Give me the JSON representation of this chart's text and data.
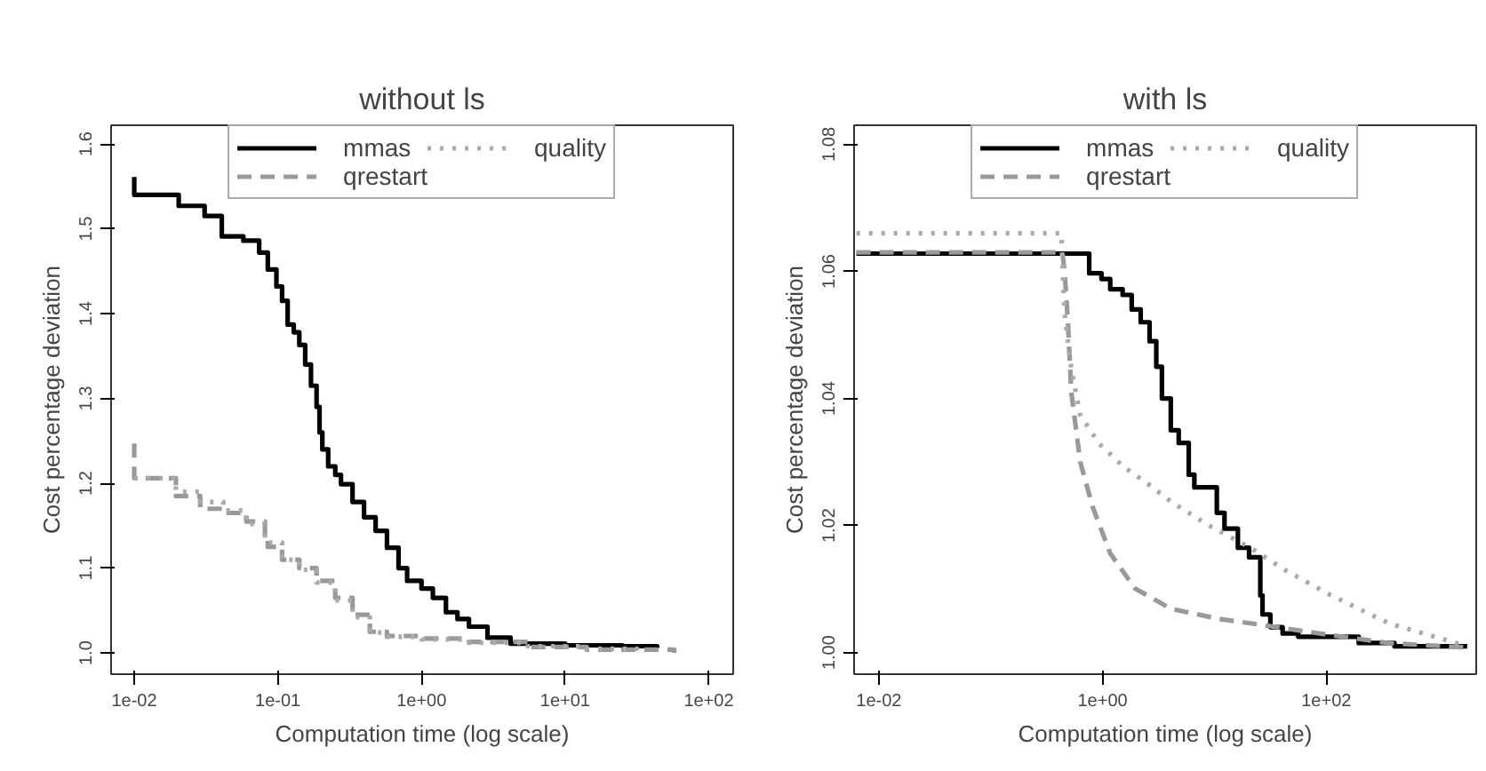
{
  "chart_data": [
    {
      "type": "step",
      "title": "without ls",
      "xlabel": "Computation time (log scale)",
      "ylabel": "Cost percentage deviation",
      "log": "x",
      "grid": false,
      "legend": "top",
      "xlim": [
        0.0069,
        148
      ],
      "ylim": [
        0.975,
        1.622
      ],
      "xticks": [
        {
          "value": 0.01,
          "label": "1e-02"
        },
        {
          "value": 0.1,
          "label": "1e-01"
        },
        {
          "value": 1,
          "label": "1e+00"
        },
        {
          "value": 10,
          "label": "1e+01"
        },
        {
          "value": 100,
          "label": "1e+02"
        }
      ],
      "yticks": [
        {
          "value": 1.0,
          "label": "1.0"
        },
        1.1,
        1.2,
        1.3,
        1.4,
        1.5,
        1.6
      ],
      "series": [
        {
          "name": "mmas",
          "color": "#000000",
          "line_style": "solid",
          "x": [
            0.01,
            0.01,
            0.0204,
            0.0309,
            0.0407,
            0.0575,
            0.0741,
            0.0851,
            0.0977,
            0.107,
            0.117,
            0.129,
            0.141,
            0.155,
            0.17,
            0.186,
            0.195,
            0.204,
            0.224,
            0.251,
            0.275,
            0.331,
            0.398,
            0.479,
            0.575,
            0.692,
            0.794,
            1,
            1.2,
            1.48,
            1.78,
            2.14,
            2.88,
            4.17,
            10,
            25.1,
            43.7
          ],
          "values": [
            1.561,
            1.54,
            1.527,
            1.515,
            1.491,
            1.486,
            1.472,
            1.452,
            1.432,
            1.415,
            1.387,
            1.378,
            1.363,
            1.34,
            1.315,
            1.29,
            1.26,
            1.24,
            1.22,
            1.21,
            1.199,
            1.178,
            1.16,
            1.144,
            1.124,
            1.1,
            1.085,
            1.076,
            1.065,
            1.048,
            1.04,
            1.031,
            1.018,
            1.011,
            1.009,
            1.008,
            1.006
          ]
        },
        {
          "name": "qrestart",
          "color": "#999999",
          "line_style": "dashed",
          "x": [
            0.01,
            0.01,
            0.0195,
            0.0288,
            0.0417,
            0.0603,
            0.0813,
            0.0851,
            0.107,
            0.141,
            0.186,
            0.251,
            0.331,
            0.437,
            0.575,
            1,
            2.14,
            5.5,
            14.1,
            57.5
          ],
          "values": [
            1.247,
            1.206,
            1.185,
            1.17,
            1.165,
            1.155,
            1.14,
            1.125,
            1.11,
            1.1,
            1.085,
            1.065,
            1.045,
            1.025,
            1.02,
            1.017,
            1.013,
            1.007,
            1.004,
            1.0
          ]
        },
        {
          "name": "quality",
          "color": "#aaaaaa",
          "line_style": "dotted",
          "x": [
            0.01,
            0.0195,
            0.0288,
            0.0417,
            0.0603,
            0.0813,
            0.107,
            0.141,
            0.186,
            0.251,
            0.331,
            0.437,
            0.575,
            1,
            2.14,
            5.5,
            14.1,
            31.6
          ],
          "values": [
            1.206,
            1.19,
            1.178,
            1.168,
            1.152,
            1.13,
            1.11,
            1.098,
            1.083,
            1.062,
            1.042,
            1.024,
            1.019,
            1.016,
            1.012,
            1.008,
            1.005,
            1.003
          ]
        }
      ]
    },
    {
      "type": "step",
      "title": "with ls",
      "xlabel": "Computation time (log scale)",
      "ylabel": "Cost percentage deviation",
      "log": "x",
      "grid": false,
      "legend": "top",
      "xlim": [
        0.006,
        2190
      ],
      "ylim": [
        0.9966,
        1.083
      ],
      "xticks": [
        {
          "value": 0.01,
          "label": "1e-02"
        },
        {
          "value": 1,
          "label": "1e+00"
        },
        {
          "value": 100,
          "label": "1e+02"
        }
      ],
      "yticks": [
        {
          "value": 1.0,
          "label": "1.00"
        },
        1.02,
        1.04,
        1.06,
        1.08
      ],
      "series": [
        {
          "name": "mmas",
          "color": "#000000",
          "line_style": "solid",
          "x": [
            0.0063,
            0.759,
            0.977,
            1.17,
            1.51,
            1.82,
            2.19,
            2.63,
            3.02,
            3.39,
            4.07,
            4.79,
            5.89,
            6.61,
            10.5,
            12.3,
            16.2,
            20.4,
            25.7,
            26.9,
            31.6,
            40.7,
            56.2,
            195,
            407,
            1820
          ],
          "values": [
            1.0628,
            1.0597,
            1.0588,
            1.0572,
            1.0563,
            1.054,
            1.052,
            1.049,
            1.045,
            1.04,
            1.035,
            1.033,
            1.028,
            1.026,
            1.022,
            1.0195,
            1.0165,
            1.015,
            1.009,
            1.006,
            1.004,
            1.003,
            1.0025,
            1.0015,
            1.001,
            1.001
          ]
        },
        {
          "name": "qrestart",
          "color": "#999999",
          "line_style": "dashed",
          "type": "line",
          "x": [
            0.0063,
            0.437,
            0.457,
            0.49,
            0.525,
            0.631,
            0.813,
            1.17,
            1.95,
            4.07,
            11,
            30.2,
            105,
            363,
            1820
          ],
          "values": [
            1.063,
            1.063,
            1.06,
            1.052,
            1.041,
            1.03,
            1.023,
            1.0156,
            1.0101,
            1.0069,
            1.0053,
            1.0042,
            1.0028,
            1.0015,
            1.0008
          ]
        },
        {
          "name": "quality",
          "color": "#aaaaaa",
          "line_style": "dotted",
          "type": "line",
          "x": [
            0.0063,
            0.427,
            0.457,
            0.525,
            0.631,
            0.93,
            1.55,
            2.57,
            4.07,
            8.7,
            20.9,
            44.7,
            105,
            363,
            1820
          ],
          "values": [
            1.066,
            1.066,
            1.0534,
            1.0447,
            1.0374,
            1.0329,
            1.0292,
            1.0265,
            1.0238,
            1.0201,
            1.0165,
            1.0128,
            1.0092,
            1.0046,
            1.001
          ]
        }
      ]
    }
  ]
}
